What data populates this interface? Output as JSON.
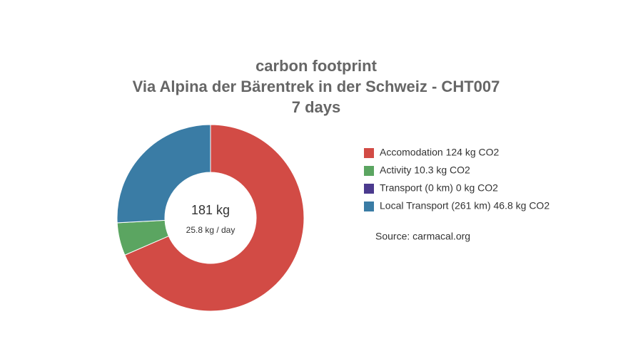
{
  "chart_data": {
    "type": "pie",
    "title": [
      "carbon footprint",
      "Via Alpina der Bärentrek in der Schweiz - CHT007",
      "7 days"
    ],
    "categories": [
      "Accomodation 124 kg CO2",
      "Activity 10.3 kg CO2",
      "Transport (0 km) 0 kg CO2",
      "Local Transport (261 km) 46.8 kg CO2"
    ],
    "values": [
      124,
      10.3,
      0,
      46.8
    ],
    "colors": [
      "#d24b45",
      "#5ba561",
      "#4b3a8e",
      "#3a7ca5"
    ],
    "center_labels": [
      "181 kg",
      "25.8 kg / day"
    ],
    "source": "Source: carmacal.org"
  }
}
